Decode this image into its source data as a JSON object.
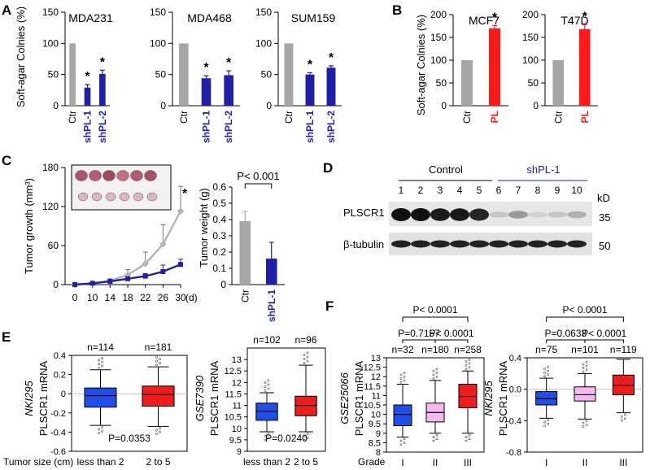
{
  "panel_labels": [
    "A",
    "B",
    "C",
    "D",
    "E",
    "F"
  ],
  "colors": {
    "ctr": "#a6a6a6",
    "sh": "#1f1fa8",
    "pl": "#ff1a1a",
    "axis": "#000000",
    "box_blue": "#1f4fe8",
    "box_red": "#ee1c1c",
    "box_pink": "#f5b8ef",
    "grid": "#bfbfbf",
    "line_gray": "#b3b3b3",
    "line_blue": "#1f1fa8"
  },
  "chart_data": [
    {
      "id": "A1",
      "type": "bar",
      "title": "MDA231",
      "ylabel": "Soft-agar Colnies (%)",
      "ylim": [
        0,
        150
      ],
      "yticks": [
        0,
        50,
        100,
        150
      ],
      "categories": [
        "Ctr",
        "shPL-1",
        "shPL-2"
      ],
      "values": [
        100,
        29,
        51
      ],
      "errors": [
        0,
        5,
        6
      ],
      "sig": [
        "",
        "*",
        "*"
      ],
      "bar_colors": [
        "ctr",
        "sh",
        "sh"
      ]
    },
    {
      "id": "A2",
      "type": "bar",
      "title": "MDA468",
      "ylim": [
        0,
        150
      ],
      "yticks": [
        0,
        50,
        100,
        150
      ],
      "categories": [
        "Ctr",
        "shPL-1",
        "shPL-2"
      ],
      "values": [
        100,
        44,
        49
      ],
      "errors": [
        0,
        4,
        7
      ],
      "sig": [
        "",
        "*",
        "*"
      ],
      "bar_colors": [
        "ctr",
        "sh",
        "sh"
      ]
    },
    {
      "id": "A3",
      "type": "bar",
      "title": "SUM159",
      "ylim": [
        0,
        150
      ],
      "yticks": [
        0,
        50,
        100,
        150
      ],
      "categories": [
        "Ctr",
        "shPL-1",
        "shPL-2"
      ],
      "values": [
        100,
        50,
        61
      ],
      "errors": [
        0,
        3,
        3
      ],
      "sig": [
        "",
        "*",
        "*"
      ],
      "bar_colors": [
        "ctr",
        "sh",
        "sh"
      ]
    },
    {
      "id": "B1",
      "type": "bar",
      "title": "MCF7",
      "ylabel": "Soft-agar Colnies (%)",
      "ylim": [
        0,
        200
      ],
      "yticks": [
        0,
        50,
        100,
        150,
        200
      ],
      "categories": [
        "Ctr",
        "PL"
      ],
      "values": [
        100,
        170
      ],
      "errors": [
        0,
        6
      ],
      "sig": [
        "",
        "*"
      ],
      "bar_colors": [
        "ctr",
        "pl"
      ]
    },
    {
      "id": "B2",
      "type": "bar",
      "title": "T47D",
      "ylim": [
        0,
        200
      ],
      "yticks": [
        0,
        50,
        100,
        150,
        200
      ],
      "categories": [
        "Ctr",
        "PL"
      ],
      "values": [
        100,
        168
      ],
      "errors": [
        0,
        10
      ],
      "sig": [
        "",
        "*"
      ],
      "bar_colors": [
        "ctr",
        "pl"
      ]
    },
    {
      "id": "C1",
      "type": "line",
      "ylabel": "Tumor growth (mm³)",
      "xlabel": "(d)",
      "ylim": [
        0,
        180
      ],
      "yticks": [
        0,
        60,
        120,
        180
      ],
      "x": [
        0,
        10,
        14,
        18,
        22,
        26,
        30
      ],
      "series": [
        {
          "key": "ctr",
          "values": [
            0,
            2,
            6,
            15,
            32,
            62,
            113
          ],
          "errors": [
            0,
            2,
            3,
            8,
            18,
            30,
            38
          ]
        },
        {
          "key": "sh",
          "values": [
            0,
            2,
            5,
            9,
            13,
            20,
            31
          ],
          "errors": [
            0,
            1,
            2,
            3,
            4,
            10,
            8
          ]
        }
      ],
      "sig_label": "*"
    },
    {
      "id": "C2",
      "type": "bar",
      "ylabel": "Tumor weight (g)",
      "ylim": [
        0,
        0.6
      ],
      "yticks": [
        "0",
        "0.1",
        "0.2",
        "0.3",
        "0.4",
        "0.5",
        "0.6"
      ],
      "categories": [
        "Ctr",
        "shPL-1"
      ],
      "values": [
        0.39,
        0.16
      ],
      "errors": [
        0.06,
        0.1
      ],
      "bar_colors": [
        "ctr",
        "sh"
      ],
      "p_label": "P< 0.001"
    },
    {
      "id": "E1",
      "type": "box",
      "dataset": "NKI295",
      "ylabel": "PLSCR1 mRNA",
      "xlabel": "Tumor size (cm)",
      "ylim": [
        -0.6,
        0.4
      ],
      "yticks": [
        "-0.6",
        "-0.4",
        "-0.2",
        "0",
        "0.2",
        "0.4"
      ],
      "categories": [
        "less than 2",
        "2 to 5"
      ],
      "n_labels": [
        "n=114",
        "n=181"
      ],
      "boxes": [
        {
          "whislo": -0.33,
          "q1": -0.14,
          "med": -0.02,
          "q3": 0.06,
          "whishi": 0.25,
          "color": "box_blue"
        },
        {
          "whislo": -0.34,
          "q1": -0.13,
          "med": -0.01,
          "q3": 0.08,
          "whishi": 0.28,
          "color": "box_red"
        }
      ],
      "p_label": "P=0.0353"
    },
    {
      "id": "E2",
      "type": "box",
      "dataset": "GSE7390",
      "ylabel": "PLSCR1 mRNA",
      "ylim": [
        9,
        13.5
      ],
      "yticks": [
        "9",
        "9.5",
        "10",
        "10.5",
        "11",
        "11.5",
        "12",
        "12.5",
        "13"
      ],
      "categories": [
        "less than 2",
        "2 to 5"
      ],
      "n_labels": [
        "n=102",
        "n=96"
      ],
      "boxes": [
        {
          "whislo": 9.85,
          "q1": 10.35,
          "med": 10.75,
          "q3": 11.1,
          "whishi": 11.55,
          "color": "box_blue"
        },
        {
          "whislo": 9.85,
          "q1": 10.55,
          "med": 11.0,
          "q3": 11.4,
          "whishi": 12.75,
          "color": "box_red"
        }
      ],
      "p_label": "P=0.0240"
    },
    {
      "id": "F1",
      "type": "box",
      "dataset": "GSE25066",
      "ylabel": "PLSCR1 mRNA",
      "xlabel": "Grade",
      "ylim": [
        8,
        13
      ],
      "yticks": [
        "8",
        "8.5",
        "9",
        "9.5",
        "10",
        "10.5",
        "11",
        "11.5",
        "12",
        "12.5",
        "13"
      ],
      "categories": [
        "I",
        "II",
        "III"
      ],
      "n_labels": [
        "n=32",
        "n=180",
        "n=258"
      ],
      "boxes": [
        {
          "whislo": 8.8,
          "q1": 9.4,
          "med": 10.0,
          "q3": 10.5,
          "whishi": 11.6,
          "color": "box_blue"
        },
        {
          "whislo": 9.0,
          "q1": 9.6,
          "med": 10.1,
          "q3": 10.6,
          "whishi": 11.8,
          "color": "box_pink"
        },
        {
          "whislo": 9.0,
          "q1": 10.35,
          "med": 10.95,
          "q3": 11.6,
          "whishi": 12.3,
          "color": "box_red"
        }
      ],
      "p_top": "P< 0.0001",
      "p_left": "P=0.7157",
      "p_right": "P< 0.0001"
    },
    {
      "id": "F2",
      "type": "box",
      "dataset": "NKI295",
      "ylabel": "PLSCR1 mRNA",
      "ylim": [
        -0.8,
        0.4
      ],
      "yticks": [
        "-0.8",
        "-0.4",
        "0.0",
        "0.4"
      ],
      "categories": [
        "I",
        "II",
        "III"
      ],
      "n_labels": [
        "n=75",
        "n=101",
        "n=119"
      ],
      "boxes": [
        {
          "whislo": -0.37,
          "q1": -0.2,
          "med": -0.12,
          "q3": -0.03,
          "whishi": 0.14,
          "color": "box_blue"
        },
        {
          "whislo": -0.38,
          "q1": -0.15,
          "med": -0.07,
          "q3": 0.03,
          "whishi": 0.2,
          "color": "box_pink"
        },
        {
          "whislo": -0.3,
          "q1": -0.07,
          "med": 0.05,
          "q3": 0.18,
          "whishi": 0.38,
          "color": "box_red"
        }
      ],
      "p_top": "P< 0.0001",
      "p_left": "P=0.0633",
      "p_right": "P< 0.0001"
    }
  ],
  "blot": {
    "group_labels": [
      "Control",
      "shPL-1"
    ],
    "lane_numbers": [
      "1",
      "2",
      "3",
      "4",
      "5",
      "6",
      "7",
      "8",
      "9",
      "10"
    ],
    "band_labels": [
      "PLSCR1",
      "β-tubulin"
    ],
    "mw_unit": "kD",
    "mw_values": [
      "35",
      "50"
    ],
    "plscr1_intensity": [
      1.0,
      1.0,
      0.95,
      0.95,
      0.9,
      0.15,
      0.35,
      0.1,
      0.15,
      0.25
    ],
    "tubulin_intensity": [
      1,
      1,
      1,
      1,
      1,
      1,
      1,
      1,
      1,
      1
    ]
  }
}
